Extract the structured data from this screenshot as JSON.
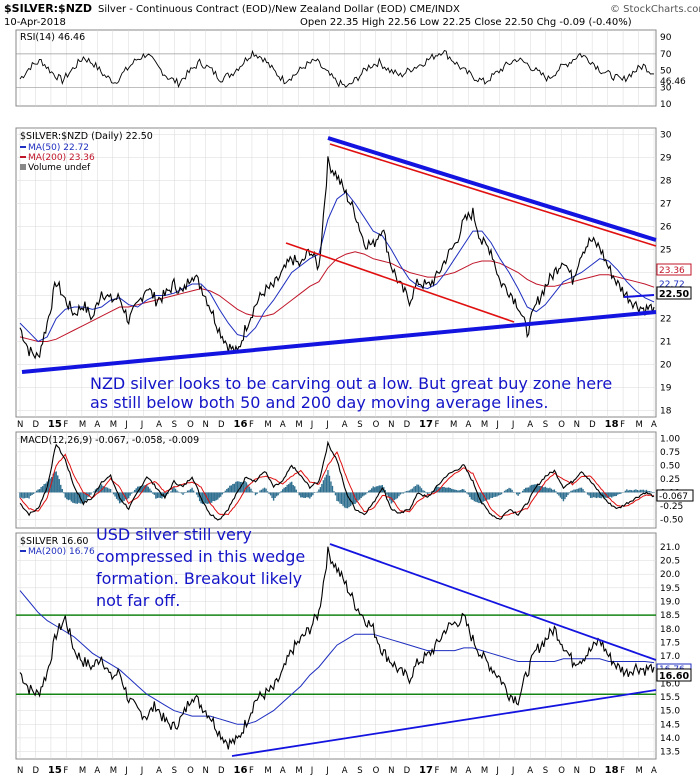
{
  "header": {
    "symbol": "$SILVER:$NZD",
    "description": "Silver - Continuous Contract (EOD)/New Zealand Dollar (EOD) CME/INDX",
    "date": "10-Apr-2018",
    "ohlc": "Open 22.35  High 22.56  Low 22.25  Close 22.50  Chg -0.09 (-0.40%)",
    "watermark": "© StockCharts.com"
  },
  "colors": {
    "price": "#000000",
    "ma50": "#1f2fbf",
    "ma200": "#c0162a",
    "trend_blue": "#1414e0",
    "trend_red": "#e01010",
    "support_green": "#148414",
    "annotation": "#1414c8",
    "macd_hist": "#2f6f8f",
    "grid": "#d8d8d8"
  },
  "chart_data": [
    {
      "type": "line",
      "title": "RSI(14) 46.46",
      "ylim": [
        10,
        95
      ],
      "ticks": [
        "90",
        "70",
        "50",
        "30",
        "10"
      ],
      "ref_lines": [
        70,
        30
      ],
      "last_value": "46.46",
      "series": [
        {
          "name": "RSI(14)",
          "values": [
            40,
            55,
            62,
            48,
            38,
            52,
            66,
            58,
            44,
            36,
            50,
            63,
            70,
            55,
            42,
            35,
            48,
            60,
            52,
            40,
            46,
            58,
            72,
            65,
            50,
            38,
            45,
            56,
            62,
            48,
            36,
            30,
            42,
            55,
            60,
            50,
            44,
            52,
            58,
            66,
            74,
            62,
            50,
            42,
            36,
            46,
            56,
            64,
            58,
            48,
            40,
            52,
            60,
            70,
            62,
            50,
            44,
            38,
            48,
            56,
            46
          ]
        }
      ]
    },
    {
      "type": "line",
      "title": "$SILVER:$NZD (Daily) 22.50",
      "ylim": [
        17.8,
        30.2
      ],
      "ticks": [
        "30",
        "29",
        "28",
        "27",
        "26",
        "25",
        "24",
        "23",
        "22",
        "21",
        "20",
        "19",
        "18"
      ],
      "x_ticks": [
        "N",
        "D",
        "15",
        "F",
        "M",
        "A",
        "M",
        "J",
        "J",
        "A",
        "S",
        "O",
        "N",
        "D",
        "16",
        "F",
        "M",
        "A",
        "M",
        "J",
        "J",
        "A",
        "S",
        "O",
        "N",
        "D",
        "17",
        "F",
        "M",
        "A",
        "M",
        "J",
        "J",
        "A",
        "S",
        "O",
        "N",
        "D",
        "18",
        "F",
        "M",
        "A"
      ],
      "legend": [
        "$SILVER:$NZD (Daily) 22.50",
        "MA(50) 22.72",
        "MA(200) 23.36",
        "Volume undef"
      ],
      "last_labels": [
        "23.36",
        "22.72",
        "22.50"
      ],
      "series": [
        {
          "name": "$SILVER:$NZD",
          "values": [
            21.6,
            20.6,
            20.3,
            21.8,
            23.6,
            22.8,
            22.2,
            22.6,
            22.0,
            23.2,
            22.8,
            22.9,
            21.9,
            22.6,
            23.4,
            22.8,
            23.0,
            23.5,
            23.1,
            24.0,
            23.4,
            22.5,
            21.5,
            20.8,
            20.5,
            21.7,
            22.6,
            23.2,
            23.4,
            24.0,
            24.6,
            24.3,
            25.0,
            24.2,
            28.8,
            28.2,
            27.4,
            26.6,
            25.3,
            25.2,
            26.0,
            24.3,
            23.4,
            22.8,
            23.6,
            23.4,
            23.8,
            24.6,
            25.2,
            26.2,
            26.6,
            25.3,
            25.0,
            23.6,
            23.2,
            22.6,
            21.4,
            22.6,
            23.4,
            24.0,
            24.6,
            23.7,
            24.9,
            25.4,
            25.1,
            24.2,
            23.5,
            23.0,
            22.6,
            22.4,
            22.5
          ]
        },
        {
          "name": "MA(50) 22.72",
          "values": [
            21.8,
            21.4,
            21.0,
            21.2,
            22.0,
            22.4,
            22.5,
            22.5,
            22.4,
            22.5,
            22.8,
            22.9,
            22.6,
            22.5,
            22.8,
            23.0,
            23.0,
            23.1,
            23.3,
            23.5,
            23.5,
            23.1,
            22.4,
            21.8,
            21.3,
            21.2,
            21.6,
            22.3,
            22.8,
            23.4,
            24.0,
            24.3,
            24.6,
            24.8,
            26.3,
            27.2,
            27.5,
            27.0,
            26.4,
            25.8,
            25.6,
            25.0,
            24.3,
            23.7,
            23.4,
            23.3,
            23.5,
            24.0,
            24.6,
            25.2,
            25.8,
            25.8,
            25.3,
            24.6,
            24.0,
            23.3,
            22.5,
            22.3,
            22.6,
            23.1,
            23.6,
            23.8,
            24.0,
            24.3,
            24.6,
            24.5,
            24.1,
            23.6,
            23.2,
            22.9,
            22.72
          ]
        },
        {
          "name": "MA(200) 23.36",
          "values": [
            21.2,
            21.1,
            21.0,
            21.0,
            21.1,
            21.3,
            21.5,
            21.7,
            21.9,
            22.1,
            22.3,
            22.5,
            22.5,
            22.6,
            22.7,
            22.8,
            22.9,
            23.0,
            23.1,
            23.2,
            23.3,
            23.2,
            23.0,
            22.7,
            22.4,
            22.2,
            22.1,
            22.1,
            22.2,
            22.5,
            22.8,
            23.1,
            23.4,
            23.6,
            24.2,
            24.6,
            24.8,
            24.9,
            24.8,
            24.6,
            24.5,
            24.4,
            24.2,
            24.0,
            23.9,
            23.8,
            23.8,
            23.9,
            24.0,
            24.2,
            24.4,
            24.5,
            24.5,
            24.4,
            24.2,
            24.0,
            23.7,
            23.5,
            23.4,
            23.4,
            23.5,
            23.6,
            23.7,
            23.8,
            23.9,
            23.9,
            23.8,
            23.7,
            23.6,
            23.5,
            23.36
          ]
        }
      ],
      "annotation": [
        "NZD silver looks to be carving out a low. But great buy zone here",
        "as still below both 50 and 200 day moving average lines."
      ]
    },
    {
      "type": "line",
      "title": "MACD(12,26,9) -0.067, -0.058, -0.009",
      "ylim": [
        -0.62,
        1.08
      ],
      "ticks": [
        "1.00",
        "0.75",
        "0.50",
        "0.25",
        "0.00",
        "-0.25",
        "-0.50"
      ],
      "last_value": "-0.067",
      "series": [
        {
          "name": "MACD",
          "values": [
            -0.2,
            -0.4,
            -0.3,
            0.1,
            0.9,
            0.6,
            0.1,
            -0.2,
            -0.1,
            0.2,
            0.3,
            -0.1,
            -0.3,
            0.0,
            0.3,
            0.1,
            -0.1,
            0.2,
            0.1,
            0.3,
            -0.1,
            -0.4,
            -0.5,
            -0.3,
            0.0,
            0.3,
            0.2,
            0.4,
            0.1,
            0.2,
            0.5,
            0.3,
            0.1,
            0.2,
            0.9,
            0.6,
            0.0,
            -0.3,
            -0.4,
            -0.2,
            0.1,
            -0.3,
            -0.4,
            -0.3,
            0.0,
            -0.1,
            0.1,
            0.3,
            0.4,
            0.5,
            0.2,
            -0.2,
            -0.4,
            -0.5,
            -0.3,
            -0.4,
            -0.2,
            0.1,
            0.3,
            0.4,
            0.1,
            0.2,
            0.4,
            0.2,
            0.0,
            -0.2,
            -0.3,
            -0.2,
            -0.1,
            0.0,
            -0.067
          ]
        },
        {
          "name": "Signal",
          "values": [
            -0.1,
            -0.3,
            -0.35,
            -0.1,
            0.5,
            0.7,
            0.3,
            0.0,
            -0.1,
            0.05,
            0.25,
            0.1,
            -0.2,
            -0.1,
            0.15,
            0.2,
            0.0,
            0.1,
            0.15,
            0.2,
            0.1,
            -0.2,
            -0.4,
            -0.4,
            -0.2,
            0.1,
            0.25,
            0.3,
            0.25,
            0.15,
            0.3,
            0.4,
            0.2,
            0.15,
            0.5,
            0.75,
            0.3,
            -0.1,
            -0.35,
            -0.3,
            -0.05,
            -0.1,
            -0.35,
            -0.35,
            -0.15,
            -0.05,
            0.0,
            0.2,
            0.35,
            0.45,
            0.35,
            0.0,
            -0.3,
            -0.45,
            -0.4,
            -0.35,
            -0.3,
            -0.05,
            0.2,
            0.35,
            0.25,
            0.15,
            0.3,
            0.3,
            0.1,
            -0.1,
            -0.25,
            -0.25,
            -0.15,
            -0.05,
            -0.058
          ]
        }
      ]
    },
    {
      "type": "line",
      "title": "$SILVER 16.60",
      "ylim": [
        13.3,
        21.4
      ],
      "ticks": [
        "21.0",
        "20.5",
        "20.0",
        "19.5",
        "19.0",
        "18.5",
        "18.0",
        "17.5",
        "17.0",
        "16.5",
        "16.0",
        "15.5",
        "15.0",
        "14.5",
        "14.0",
        "13.5"
      ],
      "legend": [
        "$SILVER 16.60",
        "MA(200) 16.76"
      ],
      "last_labels": [
        "16.76",
        "16.60"
      ],
      "horizontal_lines": [
        18.5,
        15.6
      ],
      "series": [
        {
          "name": "$SILVER",
          "values": [
            16.4,
            15.8,
            15.6,
            16.4,
            17.8,
            18.4,
            17.2,
            16.8,
            16.6,
            17.0,
            16.2,
            16.4,
            15.4,
            15.0,
            14.8,
            15.2,
            14.6,
            14.4,
            14.8,
            15.6,
            15.2,
            14.8,
            14.2,
            13.8,
            13.9,
            14.6,
            15.4,
            15.6,
            15.8,
            16.4,
            17.2,
            17.6,
            18.0,
            18.6,
            20.8,
            20.2,
            19.6,
            18.9,
            18.4,
            18.0,
            17.2,
            16.8,
            16.4,
            16.2,
            16.8,
            17.0,
            17.4,
            18.0,
            18.2,
            18.4,
            17.6,
            17.0,
            16.6,
            16.2,
            15.6,
            15.4,
            16.4,
            17.2,
            17.6,
            18.0,
            17.4,
            16.8,
            16.9,
            17.2,
            17.6,
            17.0,
            16.6,
            16.4,
            16.6,
            16.5,
            16.6
          ]
        },
        {
          "name": "MA(200)",
          "values": [
            19.4,
            19.0,
            18.6,
            18.3,
            18.1,
            17.9,
            17.7,
            17.4,
            17.1,
            16.9,
            16.7,
            16.5,
            16.2,
            15.9,
            15.6,
            15.4,
            15.2,
            15.0,
            14.9,
            14.8,
            14.8,
            14.8,
            14.7,
            14.6,
            14.5,
            14.5,
            14.6,
            14.8,
            15.0,
            15.3,
            15.6,
            15.9,
            16.3,
            16.6,
            17.0,
            17.4,
            17.6,
            17.8,
            17.8,
            17.8,
            17.7,
            17.6,
            17.5,
            17.4,
            17.3,
            17.2,
            17.2,
            17.2,
            17.2,
            17.3,
            17.3,
            17.2,
            17.1,
            17.0,
            16.9,
            16.8,
            16.8,
            16.8,
            16.8,
            16.8,
            16.9,
            16.9,
            16.9,
            16.9,
            16.9,
            16.8,
            16.8,
            16.8,
            16.8,
            16.8,
            16.76
          ]
        }
      ],
      "annotation": [
        "USD silver still very",
        "compressed in this wedge",
        "formation. Breakout likely",
        "not far off."
      ]
    }
  ],
  "x_axis_labels": [
    "N",
    "D",
    "15",
    "F",
    "M",
    "A",
    "M",
    "J",
    "J",
    "A",
    "S",
    "O",
    "N",
    "D",
    "16",
    "F",
    "M",
    "A",
    "M",
    "J",
    "J",
    "A",
    "S",
    "O",
    "N",
    "D",
    "17",
    "F",
    "M",
    "A",
    "M",
    "J",
    "J",
    "A",
    "S",
    "O",
    "N",
    "D",
    "18",
    "F",
    "M",
    "A"
  ]
}
